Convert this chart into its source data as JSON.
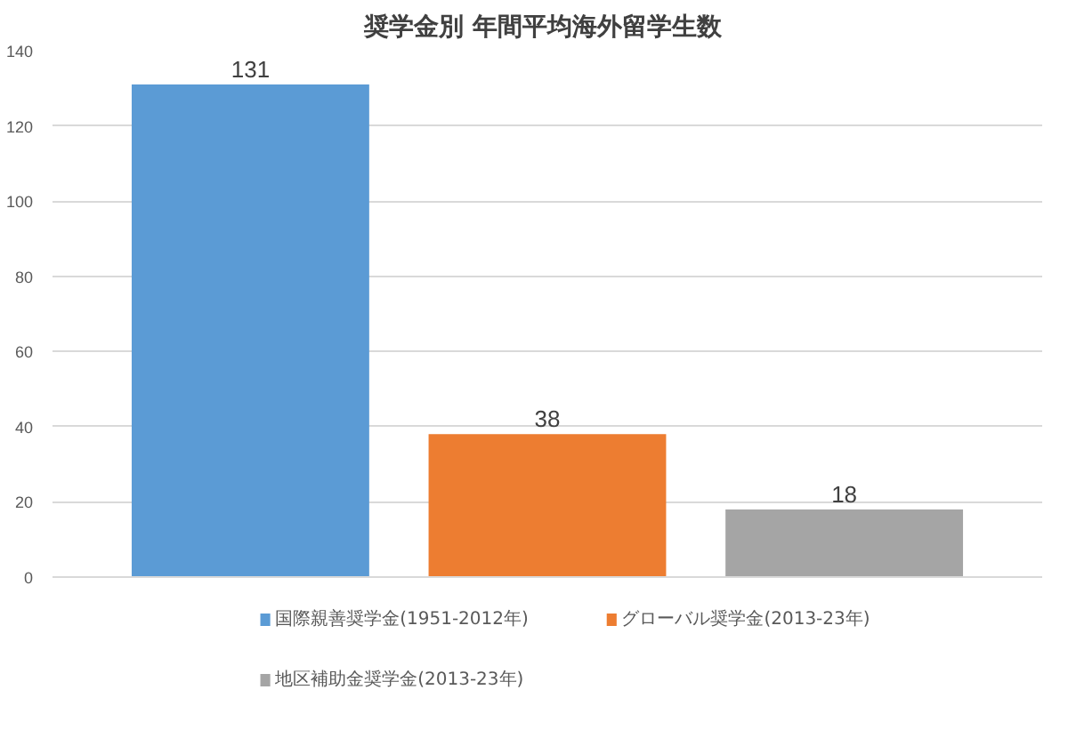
{
  "chart_data": {
    "type": "bar",
    "title": "奨学金別  年間平均海外留学生数",
    "categories": [
      null
    ],
    "series": [
      {
        "name": "国際親善奨学金(1951-2012年)",
        "color": "#5b9bd5",
        "values": [
          131
        ]
      },
      {
        "name": "グローバル奨学金(2013-23年)",
        "color": "#ed7d31",
        "values": [
          38
        ]
      },
      {
        "name": "地区補助金奨学金(2013-23年)",
        "color": "#a5a5a5",
        "values": [
          18
        ]
      }
    ],
    "ylim": [
      0,
      140
    ],
    "yticks": [
      0,
      20,
      40,
      60,
      80,
      100,
      120,
      140
    ],
    "grid": "y",
    "legend": "bottom",
    "data_labels": true
  }
}
